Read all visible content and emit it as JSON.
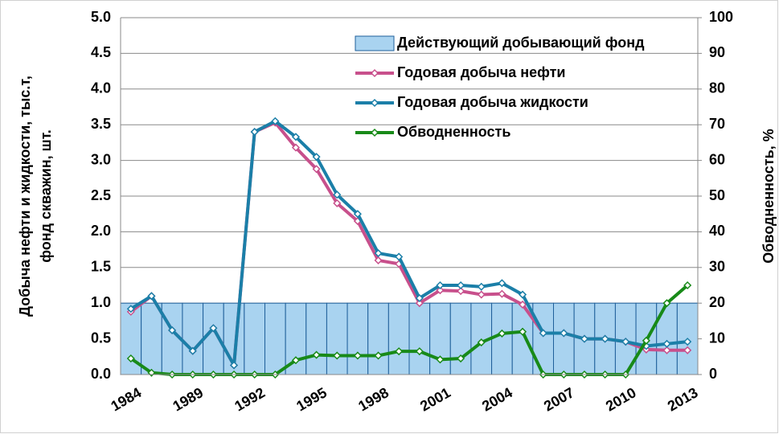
{
  "chart_data": {
    "type": "bar_line",
    "y_label": "Добыча нефти и жидкости, тыс.т, фонд скважин, шт.",
    "y_label_lines": [
      "Добыча нефти и жидкости, тыс.т,",
      "фонд скважин, шт."
    ],
    "y2_label": "Обводненность, %",
    "categories": [
      "1984",
      null,
      null,
      "1989",
      null,
      null,
      "1992",
      null,
      null,
      "1995",
      null,
      null,
      "1998",
      null,
      null,
      "2001",
      null,
      null,
      "2004",
      null,
      null,
      "2007",
      null,
      null,
      "2010",
      null,
      null,
      "2013"
    ],
    "series": [
      {
        "name": "Действующий добывающий фонд",
        "kind": "bar",
        "color": "#a9d3f0",
        "values": [
          1,
          1,
          1,
          1,
          1,
          1,
          1,
          1,
          1,
          1,
          1,
          1,
          1,
          1,
          1,
          1,
          1,
          1,
          1,
          1,
          1,
          1,
          1,
          1,
          1,
          1,
          1,
          1
        ]
      },
      {
        "name": "Годовая добыча нефти",
        "kind": "line",
        "color": "#c8508c",
        "values": [
          0.88,
          1.1,
          0.62,
          0.33,
          0.65,
          0.13,
          3.4,
          3.53,
          3.18,
          2.88,
          2.4,
          2.15,
          1.6,
          1.55,
          1.0,
          1.18,
          1.17,
          1.12,
          1.13,
          0.98,
          0.58,
          0.58,
          0.5,
          0.5,
          0.46,
          0.35,
          0.34,
          0.34
        ]
      },
      {
        "name": "Годовая добыча жидкости",
        "kind": "line",
        "color": "#1b7fa8",
        "values": [
          0.92,
          1.1,
          0.62,
          0.33,
          0.65,
          0.13,
          3.4,
          3.55,
          3.33,
          3.05,
          2.52,
          2.25,
          1.7,
          1.65,
          1.07,
          1.25,
          1.25,
          1.23,
          1.28,
          1.12,
          0.58,
          0.58,
          0.5,
          0.5,
          0.46,
          0.4,
          0.43,
          0.46
        ]
      },
      {
        "name": "Обводненность",
        "kind": "line",
        "axis": "y2",
        "color": "#188a18",
        "values": [
          4.5,
          0.5,
          0,
          0,
          0,
          0,
          0,
          0,
          4,
          5.5,
          5.3,
          5.3,
          5.3,
          6.5,
          6.5,
          4.2,
          4.5,
          9,
          11.5,
          12,
          0,
          0,
          0,
          0,
          0,
          9.5,
          20,
          25
        ]
      }
    ],
    "ylim": [
      0,
      5
    ],
    "yticks": [
      {
        "value": 0,
        "label": "0.0"
      },
      0.5,
      {
        "value": 1,
        "label": "1.0"
      },
      1.5,
      {
        "value": 2,
        "label": "2.0"
      },
      2.5,
      {
        "value": 3,
        "label": "3.0"
      },
      3.5,
      {
        "value": 4,
        "label": "4.0"
      },
      4.5,
      {
        "value": 5,
        "label": "5.0"
      }
    ],
    "y2lim": [
      0,
      100
    ],
    "y2ticks": [
      0,
      10,
      20,
      30,
      40,
      50,
      60,
      70,
      80,
      90,
      100
    ],
    "grid": true
  }
}
